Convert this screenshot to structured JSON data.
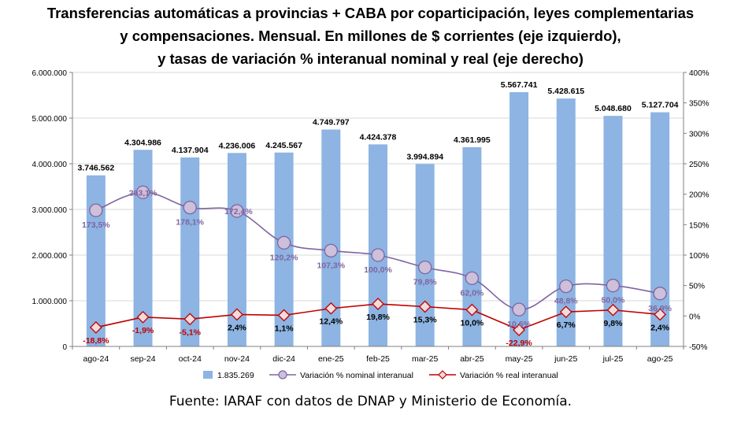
{
  "title_lines": [
    "Transferencias automáticas  a provincias  + CABA por coparticipación,  leyes complementarias",
    "y compensaciones.  Mensual. En millones de $ corrientes  (eje izquierdo),",
    "y tasas  de variación  % interanual  nominal  y real (eje derecho)"
  ],
  "source": "Fuente: IARAF con datos de DNAP y Ministerio de Economía.",
  "colors": {
    "bar": "#8DB4E2",
    "nominal_line": "#8064A2",
    "nominal_marker": "#CCC0DA",
    "real_line": "#C00000",
    "real_marker": "#F2DCDB",
    "axis": "#808080",
    "gridline": "#D9D9D9"
  },
  "chart_data": {
    "type": "bar",
    "categories": [
      "ago-24",
      "sep-24",
      "oct-24",
      "nov-24",
      "dic-24",
      "ene-25",
      "feb-25",
      "mar-25",
      "abr-25",
      "may-25",
      "jun-25",
      "jul-25",
      "ago-25"
    ],
    "y_left": {
      "min": 0,
      "max": 6000000,
      "ticks": [
        0,
        1000000,
        2000000,
        3000000,
        4000000,
        5000000,
        6000000
      ],
      "tick_labels": [
        "0",
        "1.000.000",
        "2.000.000",
        "3.000.000",
        "4.000.000",
        "5.000.000",
        "6.000.000"
      ]
    },
    "y_right": {
      "min": -50,
      "max": 400,
      "ticks": [
        -50,
        0,
        50,
        100,
        150,
        200,
        250,
        300,
        350,
        400
      ],
      "tick_labels": [
        "-50%",
        "0%",
        "50%",
        "100%",
        "150%",
        "200%",
        "250%",
        "300%",
        "350%",
        "400%"
      ]
    },
    "grid": true,
    "legend_position": "bottom",
    "series": [
      {
        "name": "1.835.269",
        "type": "bar",
        "axis": "left",
        "values": [
          3746562,
          4304986,
          4137904,
          4236006,
          4245567,
          4749797,
          4424378,
          3994894,
          4361995,
          5567741,
          5428615,
          5048680,
          5127704
        ],
        "labels": [
          "3.746.562",
          "4.304.986",
          "4.137.904",
          "4.236.006",
          "4.245.567",
          "4.749.797",
          "4.424.378",
          "3.994.894",
          "4.361.995",
          "5.567.741",
          "5.428.615",
          "5.048.680",
          "5.127.704"
        ]
      },
      {
        "name": "Variación % nominal interanual",
        "type": "line",
        "axis": "right",
        "values": [
          173.5,
          203.1,
          178.1,
          172.4,
          120.2,
          107.3,
          100.0,
          79.8,
          62.0,
          10.6,
          48.8,
          50.0,
          36.9
        ],
        "labels": [
          "173,5%",
          "203,1%",
          "178,1%",
          "172,4%",
          "120,2%",
          "107,3%",
          "100,0%",
          "79,8%",
          "62,0%",
          "10,6%",
          "48,8%",
          "50,0%",
          "36,9%"
        ]
      },
      {
        "name": "Variación % real interanual",
        "type": "line",
        "axis": "right",
        "values": [
          -18.8,
          -1.9,
          -5.1,
          2.4,
          1.1,
          12.4,
          19.8,
          15.3,
          10.0,
          -22.9,
          6.7,
          9.8,
          2.4
        ],
        "labels": [
          "-18,8%",
          "-1,9%",
          "-5,1%",
          "2,4%",
          "1,1%",
          "12,4%",
          "19,8%",
          "15,3%",
          "10,0%",
          "-22,9%",
          "6,7%",
          "9,8%",
          "2,4%"
        ]
      }
    ]
  }
}
